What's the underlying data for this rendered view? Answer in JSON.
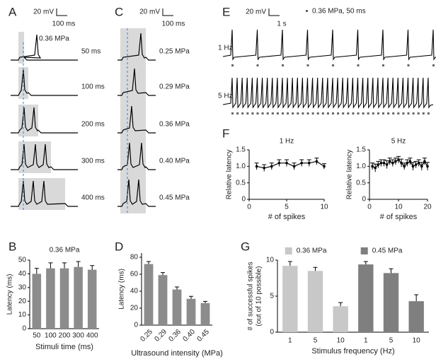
{
  "panel_labels": [
    "A",
    "B",
    "C",
    "D",
    "E",
    "F",
    "G"
  ],
  "traces": {
    "A": {
      "scale_mv": "20 mV",
      "scale_ms": "100 ms",
      "pressure": "0.36 MPa",
      "durations": [
        "50 ms",
        "100 ms",
        "200 ms",
        "300 ms",
        "400 ms"
      ]
    },
    "C": {
      "scale_mv": "20 mV",
      "scale_ms": "100 ms",
      "intensities": [
        "0.25 MPa",
        "0.29 MPa",
        "0.36 MPa",
        "0.40 MPa",
        "0.45 MPa"
      ]
    },
    "E": {
      "scale_mv": "20 mV",
      "scale_s": "1 s",
      "legend": "0.36 MPa, 50 ms",
      "rows": [
        "1 Hz",
        "5 Hz"
      ]
    }
  },
  "chart_data": [
    {
      "type": "bar",
      "subtitle": "0.36 MPa",
      "ylabel": "Latency (ms)",
      "xlabel": "Stimuli time (ms)",
      "categories": [
        "50",
        "100",
        "200",
        "300",
        "400"
      ],
      "values": [
        40,
        44,
        44,
        45,
        43
      ],
      "errors": [
        4,
        4,
        4,
        4,
        3
      ],
      "ylim": [
        0,
        50
      ],
      "yticks": [
        0,
        10,
        20,
        30,
        40,
        50
      ],
      "color": "#8c8c8c"
    },
    {
      "type": "bar",
      "ylabel": "Latency (ms)",
      "xlabel": "Ultrasound intensity (MPa)",
      "categories": [
        "0.25",
        "0.29",
        "0.36",
        "0.40",
        "0.45"
      ],
      "values": [
        72,
        59,
        42,
        31,
        26
      ],
      "errors": [
        3,
        3,
        3,
        3,
        2
      ],
      "ylim": [
        0,
        85
      ],
      "yticks": [
        0,
        20,
        40,
        60,
        80
      ],
      "color": "#8c8c8c"
    },
    {
      "type": "line",
      "title": "1 Hz",
      "xlabel": "# of spikes",
      "ylabel": "Relative latency",
      "x": [
        1,
        2,
        3,
        4,
        5,
        6,
        7,
        8,
        9,
        10
      ],
      "values": [
        1.0,
        0.95,
        1.0,
        1.1,
        1.1,
        1.0,
        1.1,
        1.1,
        1.15,
        1.0
      ],
      "errors": [
        0.1,
        0.1,
        0.1,
        0.1,
        0.1,
        0.1,
        0.1,
        0.1,
        0.1,
        0.08
      ],
      "xlim": [
        0,
        10
      ],
      "xticks": [
        0,
        5,
        10
      ],
      "ylim": [
        0,
        1.5
      ],
      "yticks": [
        0,
        0.5,
        {
          "value": 1,
          "label": "1.0"
        },
        1.5
      ],
      "color": "#000000"
    },
    {
      "type": "line",
      "title": "5 Hz",
      "xlabel": "# of spikes",
      "ylabel": "Relative latency",
      "x": [
        1,
        2,
        3,
        4,
        5,
        6,
        7,
        8,
        9,
        10,
        11,
        12,
        13,
        14,
        15,
        16,
        17,
        18,
        19,
        20
      ],
      "values": [
        1.0,
        0.95,
        1.05,
        1.1,
        1.1,
        1.05,
        1.15,
        1.1,
        1.15,
        1.2,
        1.1,
        1.0,
        1.1,
        1.15,
        1.0,
        1.05,
        1.1,
        1.0,
        1.15,
        1.0
      ],
      "errors": [
        0.1,
        0.12,
        0.1,
        0.1,
        0.1,
        0.12,
        0.1,
        0.1,
        0.1,
        0.1,
        0.12,
        0.1,
        0.1,
        0.1,
        0.12,
        0.1,
        0.1,
        0.12,
        0.1,
        0.12
      ],
      "xlim": [
        0,
        20
      ],
      "xticks": [
        0,
        10,
        20
      ],
      "ylim": [
        0,
        1.5
      ],
      "yticks": [
        0,
        0.5,
        {
          "value": 1,
          "label": "1.0"
        },
        1.5
      ],
      "color": "#000000"
    },
    {
      "type": "groupbar",
      "ylabel": [
        "# of successful spikes",
        "(out of 10 possible)"
      ],
      "xlabel": "Stimulus frequency (Hz)",
      "categories": [
        "1",
        "5",
        "10"
      ],
      "series": [
        {
          "name": "0.36 MPa",
          "color": "#c8c8c8",
          "values": [
            9.2,
            8.5,
            3.6
          ],
          "errors": [
            0.6,
            0.5,
            0.5
          ]
        },
        {
          "name": "0.45 MPa",
          "color": "#7f7f7f",
          "values": [
            9.4,
            8.2,
            4.3
          ],
          "errors": [
            0.4,
            0.6,
            0.9
          ]
        }
      ],
      "ylim": [
        0,
        10
      ],
      "yticks": [
        0,
        5,
        10
      ],
      "legend": "top"
    }
  ]
}
